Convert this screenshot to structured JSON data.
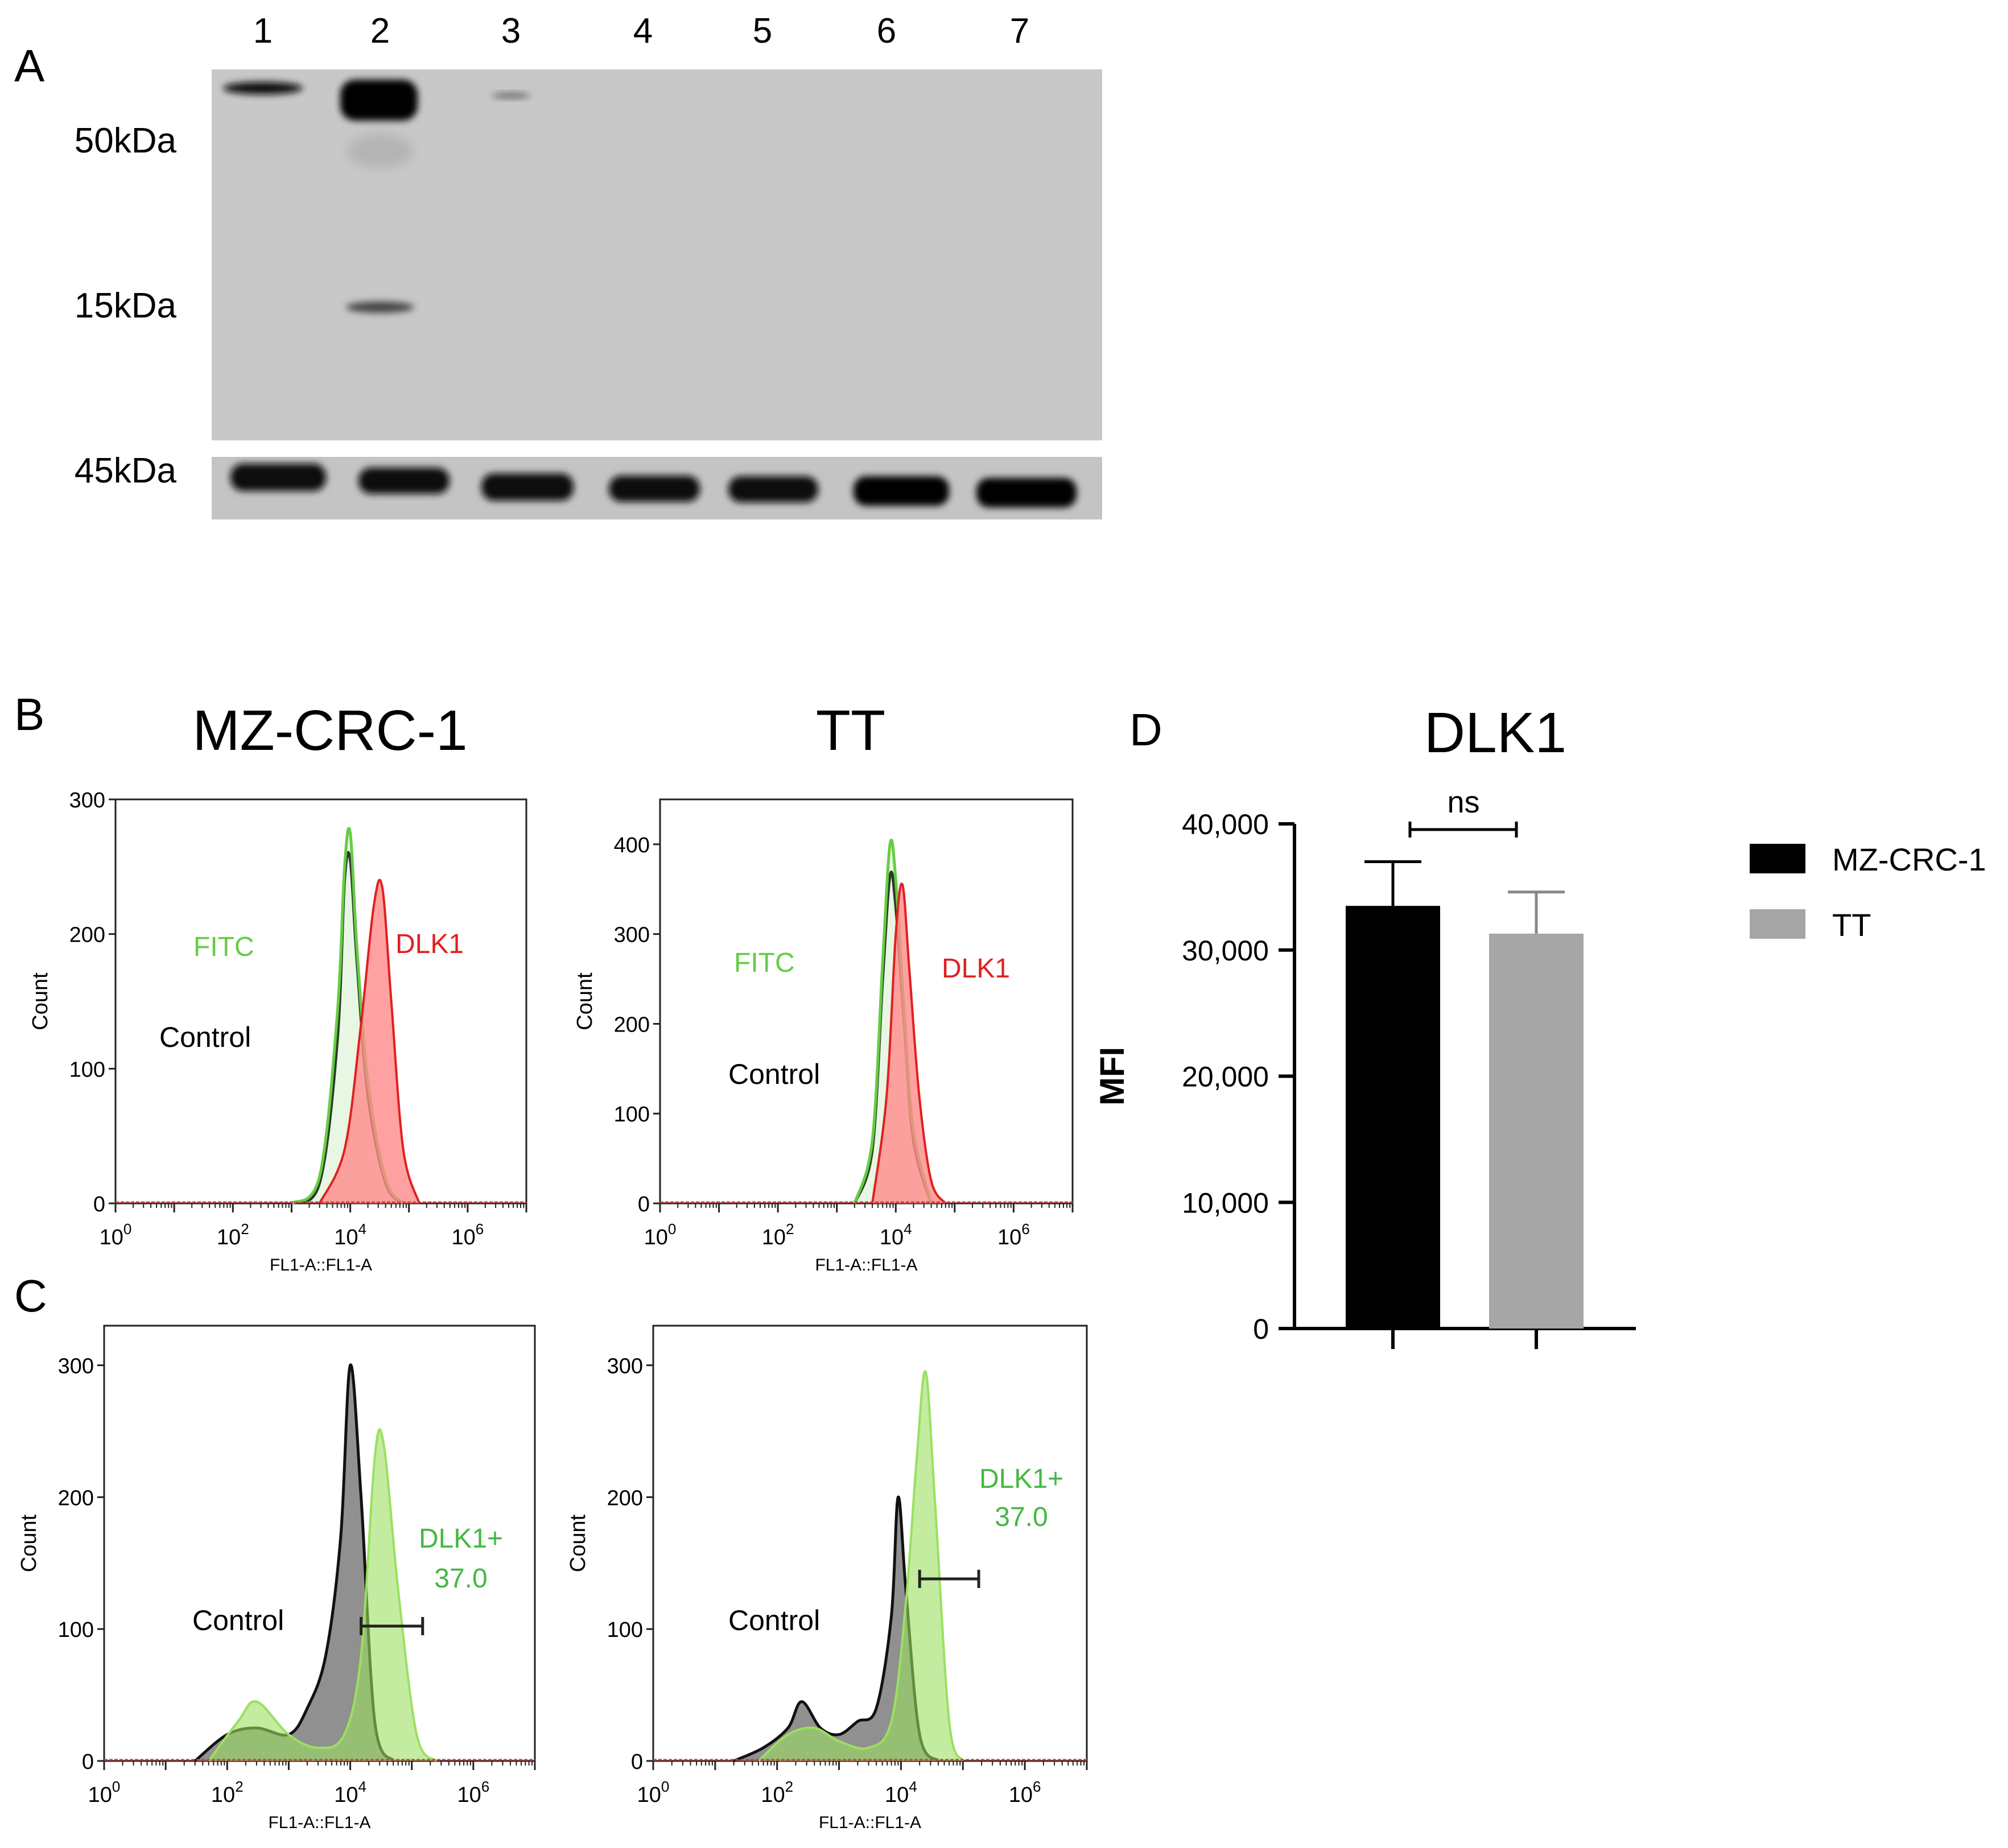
{
  "panel_a": {
    "letter": "A",
    "lanes": [
      "1",
      "2",
      "3",
      "4",
      "5",
      "6",
      "7"
    ],
    "markers": [
      "50kDa",
      "15kDa",
      "45kDa"
    ]
  },
  "panel_b": {
    "letter": "B",
    "plots": [
      {
        "title": "MZ-CRC-1",
        "ylabel": "Count",
        "xlabel": "FL1-A::FL1-A",
        "y_ticks": [
          "0",
          "100",
          "200",
          "300"
        ],
        "x_ticks": [
          {
            "base": "10",
            "exp": "0"
          },
          {
            "base": "10",
            "exp": "2"
          },
          {
            "base": "10",
            "exp": "4"
          },
          {
            "base": "10",
            "exp": "6"
          }
        ],
        "labels": {
          "fitc": "FITC",
          "control": "Control",
          "dlk1": "DLK1"
        }
      },
      {
        "title": "TT",
        "ylabel": "Count",
        "xlabel": "FL1-A::FL1-A",
        "y_ticks": [
          "0",
          "100",
          "200",
          "300",
          "400"
        ],
        "x_ticks": [
          {
            "base": "10",
            "exp": "0"
          },
          {
            "base": "10",
            "exp": "2"
          },
          {
            "base": "10",
            "exp": "4"
          },
          {
            "base": "10",
            "exp": "6"
          }
        ],
        "labels": {
          "fitc": "FITC",
          "control": "Control",
          "dlk1": "DLK1"
        }
      }
    ]
  },
  "panel_c": {
    "letter": "C",
    "plots": [
      {
        "ylabel": "Count",
        "xlabel": "FL1-A::FL1-A",
        "y_ticks": [
          "0",
          "100",
          "200",
          "300"
        ],
        "x_ticks": [
          {
            "base": "10",
            "exp": "0"
          },
          {
            "base": "10",
            "exp": "2"
          },
          {
            "base": "10",
            "exp": "4"
          },
          {
            "base": "10",
            "exp": "6"
          }
        ],
        "labels": {
          "control": "Control",
          "gate_name": "DLK1+",
          "gate_value": "37.0"
        }
      },
      {
        "ylabel": "Count",
        "xlabel": "FL1-A::FL1-A",
        "y_ticks": [
          "0",
          "100",
          "200",
          "300"
        ],
        "x_ticks": [
          {
            "base": "10",
            "exp": "0"
          },
          {
            "base": "10",
            "exp": "2"
          },
          {
            "base": "10",
            "exp": "4"
          },
          {
            "base": "10",
            "exp": "6"
          }
        ],
        "labels": {
          "control": "Control",
          "gate_name": "DLK1+",
          "gate_value": "37.0"
        }
      }
    ]
  },
  "panel_d": {
    "letter": "D",
    "title": "DLK1",
    "ylabel": "MFI",
    "y_ticks": [
      "0",
      "10,000",
      "20,000",
      "30,000",
      "40,000"
    ],
    "significance": "ns",
    "legend": [
      "MZ-CRC-1",
      "TT"
    ]
  },
  "colors": {
    "dlk1_red": "#ff8a8a",
    "dlk1_red_line": "#e02020",
    "fitc_green": "#66cc44",
    "gate_green": "#9be060",
    "control_grey": "#7d7d7d",
    "bar_black": "#000000",
    "bar_grey": "#a6a6a6",
    "blot_bg": "#c7c7c7"
  },
  "chart_data": [
    {
      "type": "bar",
      "title": "DLK1",
      "ylabel": "MFI",
      "ylim": [
        0,
        40000
      ],
      "categories": [
        "MZ-CRC-1",
        "TT"
      ],
      "values": [
        33500,
        31300
      ],
      "errors": [
        3500,
        3300
      ],
      "legend_position": "right",
      "annotations": [
        "ns"
      ]
    },
    {
      "type": "area",
      "title": "MZ-CRC-1",
      "xlabel": "FL1-A::FL1-A",
      "ylabel": "Count",
      "x_scale": "log",
      "xlim": [
        1,
        10000000
      ],
      "ylim": [
        0,
        300
      ],
      "series": [
        {
          "name": "Control",
          "x": [
            1000,
            3000,
            6000,
            8000,
            10000,
            13000,
            20000,
            40000,
            80000
          ],
          "y": [
            0,
            15,
            120,
            240,
            255,
            180,
            80,
            15,
            0
          ]
        },
        {
          "name": "FITC",
          "x": [
            1000,
            3000,
            6000,
            8000,
            10000,
            13000,
            20000,
            40000,
            80000
          ],
          "y": [
            0,
            20,
            140,
            250,
            275,
            190,
            90,
            18,
            0
          ]
        },
        {
          "name": "DLK1",
          "x": [
            3000,
            8000,
            15000,
            25000,
            35000,
            50000,
            80000,
            150000
          ],
          "y": [
            0,
            40,
            130,
            220,
            235,
            150,
            40,
            0
          ]
        }
      ]
    },
    {
      "type": "area",
      "title": "TT",
      "xlabel": "FL1-A::FL1-A",
      "ylabel": "Count",
      "x_scale": "log",
      "xlim": [
        1,
        10000000
      ],
      "ylim": [
        0,
        450
      ],
      "series": [
        {
          "name": "Control",
          "x": [
            2000,
            4000,
            6000,
            8000,
            10000,
            14000,
            20000,
            40000
          ],
          "y": [
            0,
            60,
            250,
            365,
            330,
            200,
            70,
            0
          ]
        },
        {
          "name": "FITC",
          "x": [
            2000,
            4000,
            6000,
            8000,
            10000,
            14000,
            20000,
            40000
          ],
          "y": [
            0,
            70,
            270,
            400,
            360,
            210,
            80,
            0
          ]
        },
        {
          "name": "DLK1",
          "x": [
            4000,
            7000,
            10000,
            13000,
            17000,
            25000,
            40000,
            70000
          ],
          "y": [
            0,
            120,
            300,
            355,
            260,
            120,
            25,
            0
          ]
        }
      ]
    },
    {
      "type": "area",
      "xlabel": "FL1-A::FL1-A",
      "ylabel": "Count",
      "x_scale": "log",
      "xlim": [
        1,
        10000000
      ],
      "ylim": [
        0,
        330
      ],
      "series": [
        {
          "name": "Control",
          "x": [
            30,
            100,
            300,
            1000,
            2000,
            4000,
            7000,
            10000,
            15000,
            25000,
            50000
          ],
          "y": [
            0,
            20,
            25,
            20,
            40,
            80,
            170,
            300,
            200,
            30,
            0
          ]
        },
        {
          "name": "DLK1+",
          "x": [
            50,
            150,
            300,
            1000,
            3000,
            8000,
            15000,
            25000,
            35000,
            60000,
            120000,
            250000
          ],
          "y": [
            0,
            30,
            45,
            20,
            10,
            20,
            80,
            230,
            240,
            130,
            20,
            0
          ]
        }
      ]
    },
    {
      "type": "area",
      "xlabel": "FL1-A::FL1-A",
      "ylabel": "Count",
      "x_scale": "log",
      "xlim": [
        1,
        10000000
      ],
      "ylim": [
        0,
        330
      ],
      "series": [
        {
          "name": "Control",
          "x": [
            20,
            60,
            150,
            250,
            500,
            1000,
            2000,
            4000,
            7000,
            9000,
            12000,
            20000,
            40000
          ],
          "y": [
            0,
            10,
            25,
            45,
            25,
            20,
            30,
            40,
            110,
            200,
            130,
            20,
            0
          ]
        },
        {
          "name": "DLK1+",
          "x": [
            50,
            150,
            400,
            1000,
            3000,
            7000,
            12000,
            18000,
            25000,
            35000,
            60000,
            100000
          ],
          "y": [
            0,
            20,
            25,
            15,
            10,
            30,
            120,
            230,
            295,
            200,
            30,
            0
          ]
        }
      ]
    }
  ]
}
